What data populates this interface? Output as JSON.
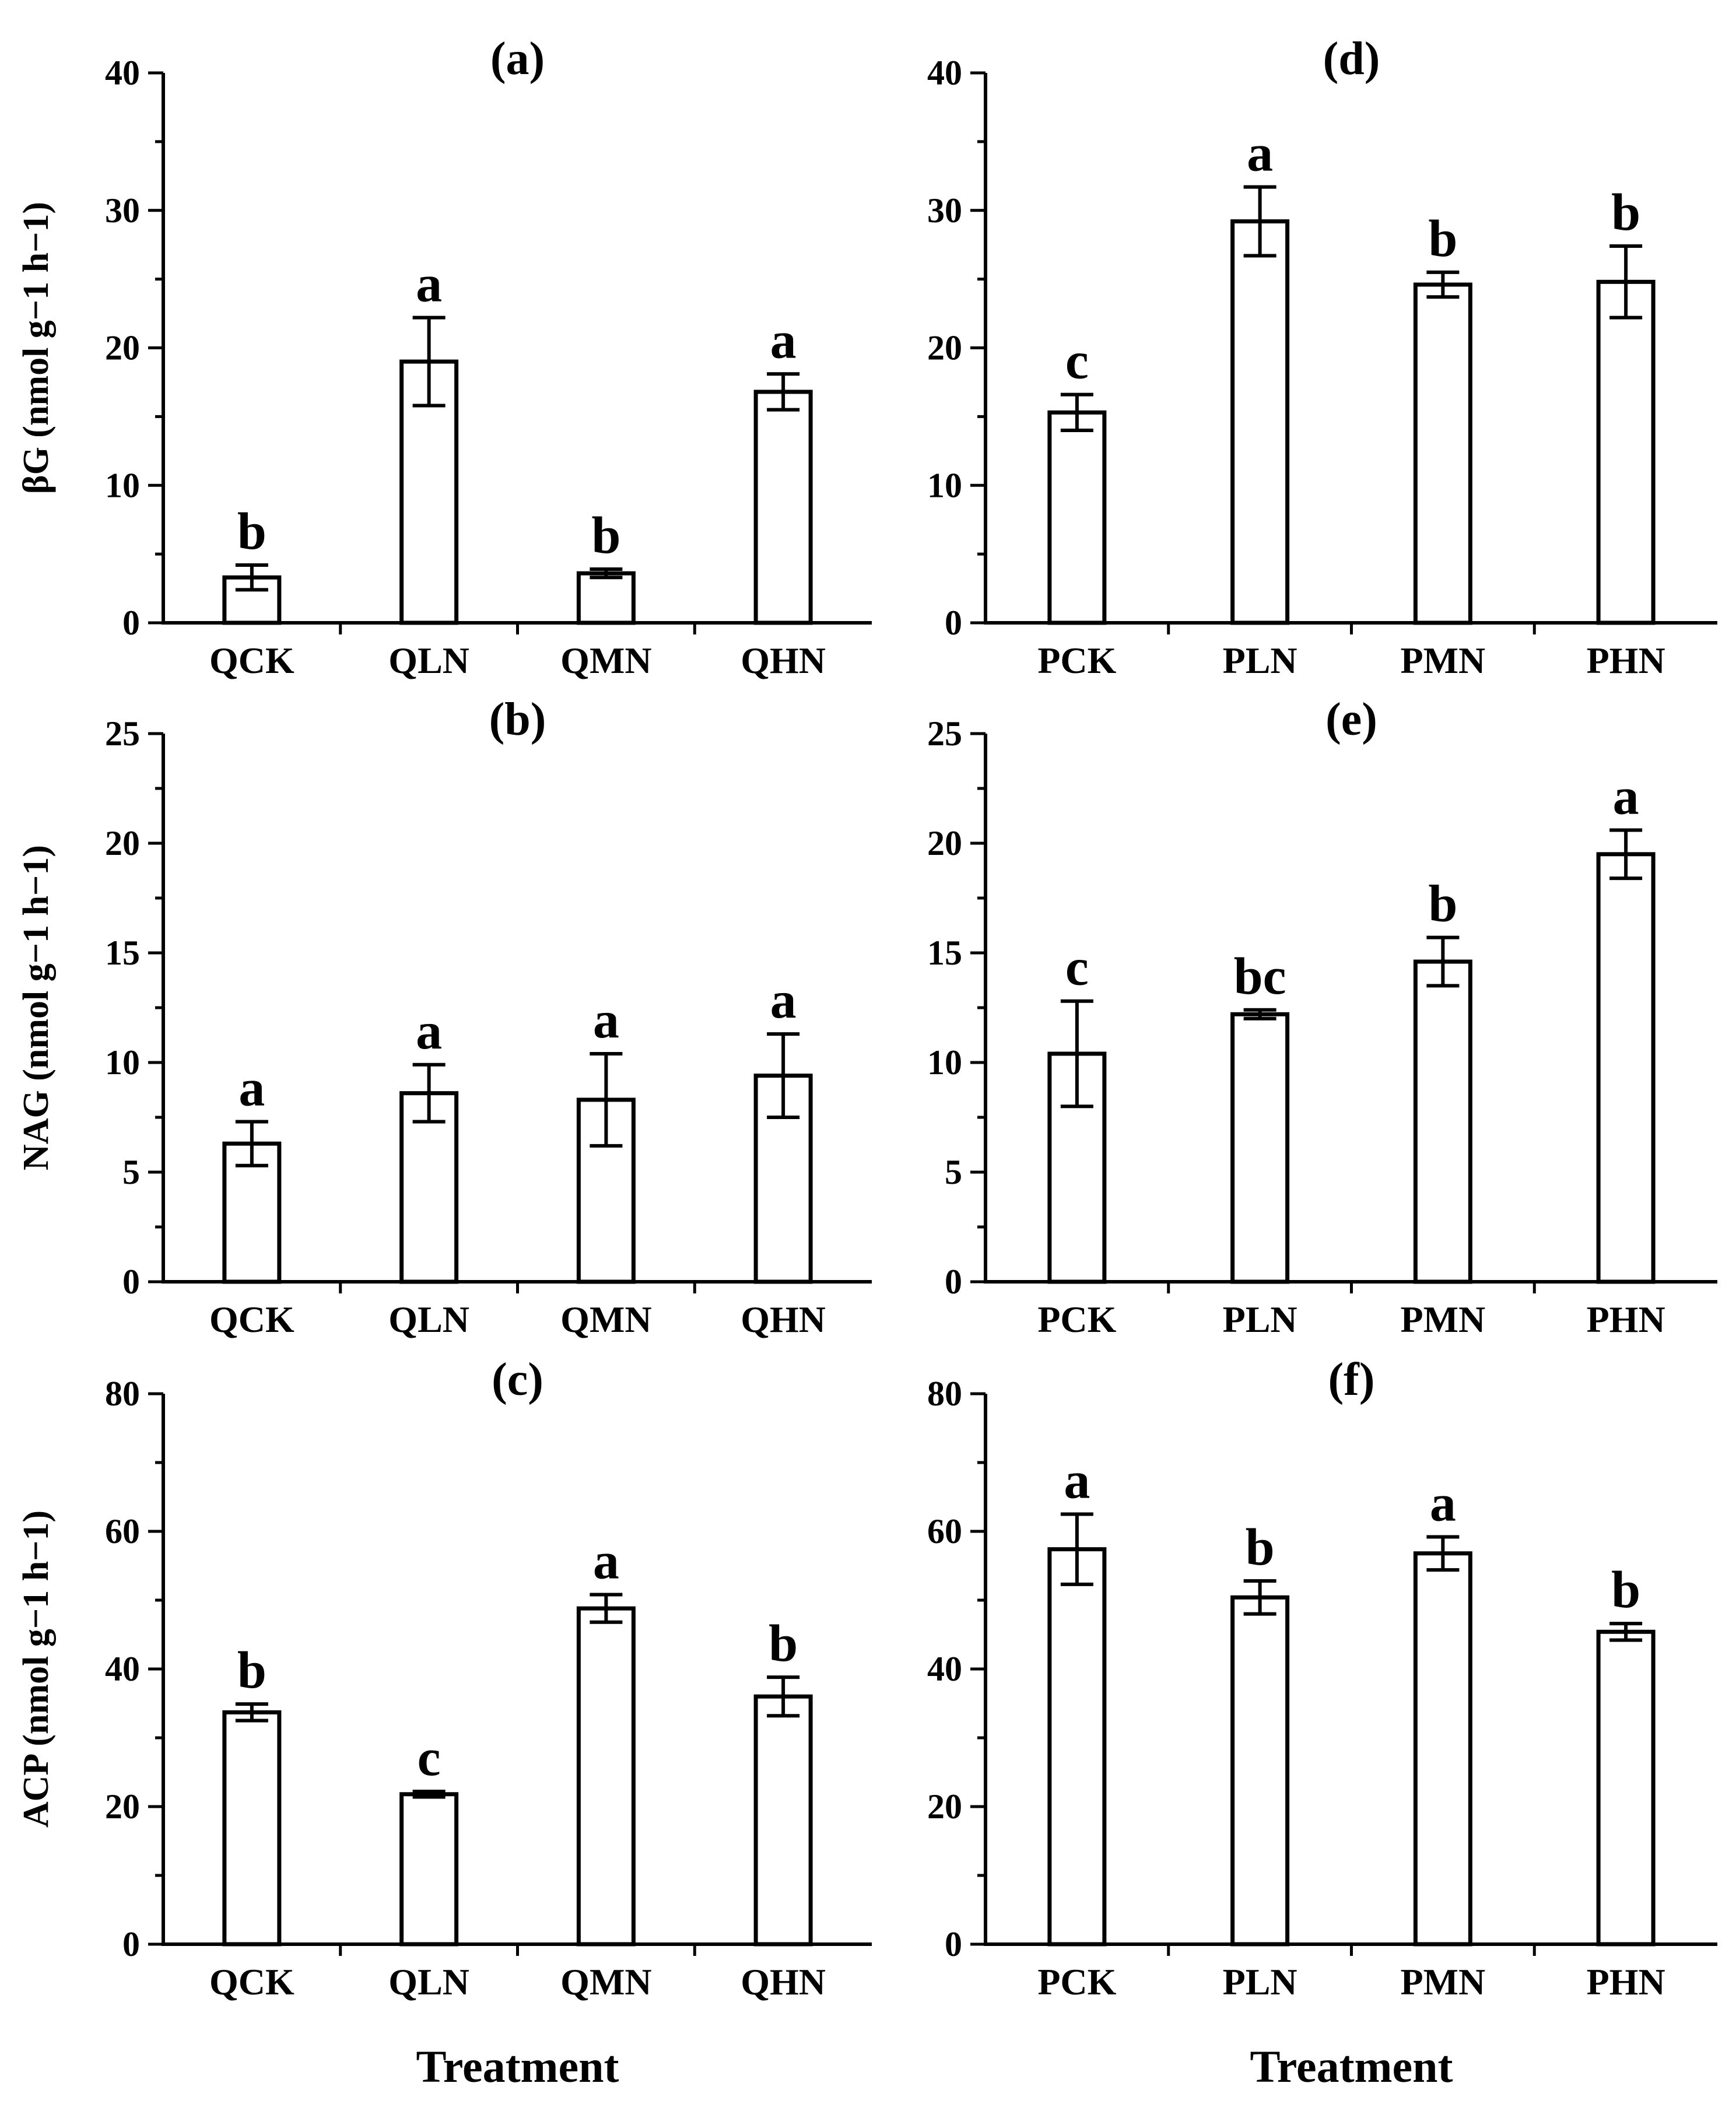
{
  "chart_data": [
    {
      "panel": "(a)",
      "type": "bar",
      "ylabel": "βG (nmol g−1 h−1)",
      "xlabel": "",
      "ylim": [
        0,
        40
      ],
      "yticks": [
        0,
        10,
        20,
        30,
        40
      ],
      "categories": [
        "QCK",
        "QLN",
        "QMN",
        "QHN"
      ],
      "values": [
        3.3,
        19.0,
        3.6,
        16.8
      ],
      "errors": [
        0.9,
        3.2,
        0.3,
        1.3
      ],
      "letters": [
        "b",
        "a",
        "b",
        "a"
      ]
    },
    {
      "panel": "(b)",
      "type": "bar",
      "ylabel": "NAG (nmol g−1 h−1)",
      "xlabel": "",
      "ylim": [
        0,
        25
      ],
      "yticks": [
        0,
        5,
        10,
        15,
        20,
        25
      ],
      "categories": [
        "QCK",
        "QLN",
        "QMN",
        "QHN"
      ],
      "values": [
        6.3,
        8.6,
        8.3,
        9.4
      ],
      "errors": [
        1.0,
        1.3,
        2.1,
        1.9
      ],
      "letters": [
        "a",
        "a",
        "a",
        "a"
      ]
    },
    {
      "panel": "(c)",
      "type": "bar",
      "ylabel": "ACP (nmol g−1 h−1)",
      "xlabel": "Treatment",
      "ylim": [
        0,
        80
      ],
      "yticks": [
        0,
        20,
        40,
        60,
        80
      ],
      "categories": [
        "QCK",
        "QLN",
        "QMN",
        "QHN"
      ],
      "values": [
        33.7,
        21.8,
        48.8,
        36.0
      ],
      "errors": [
        1.2,
        0.4,
        2.0,
        2.8
      ],
      "letters": [
        "b",
        "c",
        "a",
        "b"
      ]
    },
    {
      "panel": "(d)",
      "type": "bar",
      "ylabel": "",
      "xlabel": "",
      "ylim": [
        0,
        40
      ],
      "yticks": [
        0,
        10,
        20,
        30,
        40
      ],
      "categories": [
        "PCK",
        "PLN",
        "PMN",
        "PHN"
      ],
      "values": [
        15.3,
        29.2,
        24.6,
        24.8
      ],
      "errors": [
        1.3,
        2.5,
        0.9,
        2.6
      ],
      "letters": [
        "c",
        "a",
        "b",
        "b"
      ]
    },
    {
      "panel": "(e)",
      "type": "bar",
      "ylabel": "",
      "xlabel": "",
      "ylim": [
        0,
        25
      ],
      "yticks": [
        0,
        5,
        10,
        15,
        20,
        25
      ],
      "categories": [
        "PCK",
        "PLN",
        "PMN",
        "PHN"
      ],
      "values": [
        10.4,
        12.2,
        14.6,
        19.5
      ],
      "errors": [
        2.4,
        0.2,
        1.1,
        1.1
      ],
      "letters": [
        "c",
        "bc",
        "b",
        "a"
      ]
    },
    {
      "panel": "(f)",
      "type": "bar",
      "ylabel": "",
      "xlabel": "Treatment",
      "ylim": [
        0,
        80
      ],
      "yticks": [
        0,
        20,
        40,
        60,
        80
      ],
      "categories": [
        "PCK",
        "PLN",
        "PMN",
        "PHN"
      ],
      "values": [
        57.4,
        50.4,
        56.8,
        45.4
      ],
      "errors": [
        5.1,
        2.4,
        2.4,
        1.2
      ],
      "letters": [
        "a",
        "b",
        "a",
        "b"
      ]
    }
  ]
}
